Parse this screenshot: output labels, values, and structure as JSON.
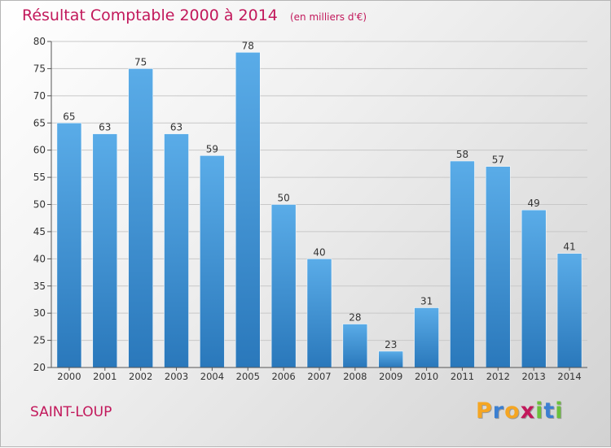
{
  "header": {
    "title": "Résultat Comptable 2000 à 2014",
    "subtitle": "(en milliers d'€)"
  },
  "footer": {
    "place": "SAINT-LOUP",
    "logo": {
      "letters": [
        "P",
        "r",
        "o",
        "x",
        "i",
        "t",
        "i"
      ],
      "colors": [
        "#f5a623",
        "#3b7fd1",
        "#f5a623",
        "#c2185b",
        "#6bbf3b",
        "#3b7fd1",
        "#6bbf3b"
      ]
    }
  },
  "colors": {
    "bar_top": "#5aace8",
    "bar_bottom": "#2a78bb",
    "accent": "#c2185b"
  },
  "chart_data": {
    "type": "bar",
    "categories": [
      "2000",
      "2001",
      "2002",
      "2003",
      "2004",
      "2005",
      "2006",
      "2007",
      "2008",
      "2009",
      "2010",
      "2011",
      "2012",
      "2013",
      "2014"
    ],
    "values": [
      65,
      63,
      75,
      63,
      59,
      78,
      50,
      40,
      28,
      23,
      31,
      58,
      57,
      49,
      41
    ],
    "ylim": [
      20,
      80
    ],
    "yticks": [
      20,
      25,
      30,
      35,
      40,
      45,
      50,
      55,
      60,
      65,
      70,
      75,
      80
    ],
    "grid": true,
    "data_labels": true
  }
}
